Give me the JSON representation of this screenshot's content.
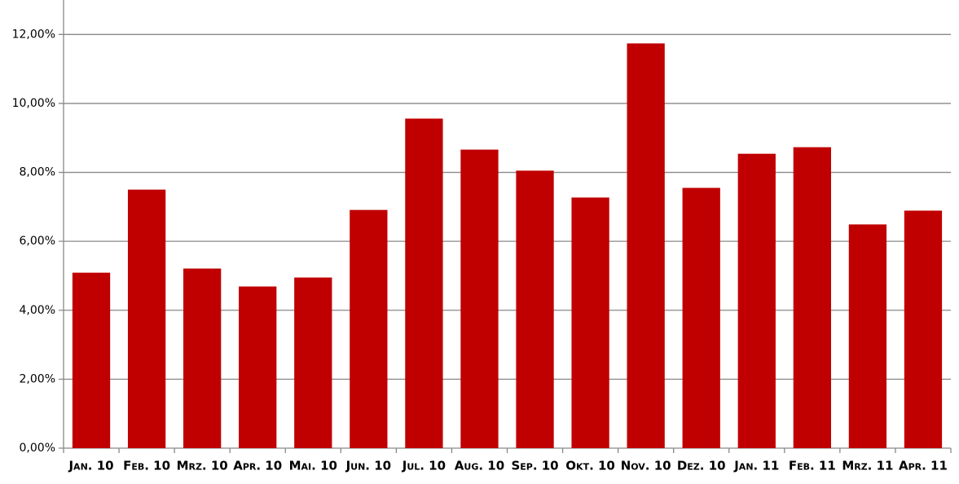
{
  "chart_data": {
    "type": "bar",
    "categories": [
      "Jan. 10",
      "Feb. 10",
      "Mrz. 10",
      "Apr. 10",
      "Mai. 10",
      "Jun. 10",
      "Jul. 10",
      "Aug. 10",
      "Sep. 10",
      "Okt. 10",
      "Nov. 10",
      "Dez. 10",
      "Jan. 11",
      "Feb. 11",
      "Mrz. 11",
      "Apr. 11"
    ],
    "values": [
      5.09,
      7.5,
      5.21,
      4.69,
      4.95,
      6.91,
      9.56,
      8.66,
      8.05,
      7.27,
      11.74,
      7.55,
      8.54,
      8.73,
      6.49,
      6.89
    ],
    "color": "#c00000",
    "ylim": [
      0,
      13
    ],
    "yticks": [
      {
        "value": 0,
        "label": "0,00%"
      },
      {
        "value": 2,
        "label": "2,00%"
      },
      {
        "value": 4,
        "label": "4,00%"
      },
      {
        "value": 6,
        "label": "6,00%"
      },
      {
        "value": 8,
        "label": "8,00%"
      },
      {
        "value": 10,
        "label": "10,00%"
      },
      {
        "value": 12,
        "label": "12,00%"
      }
    ],
    "grid": true
  }
}
